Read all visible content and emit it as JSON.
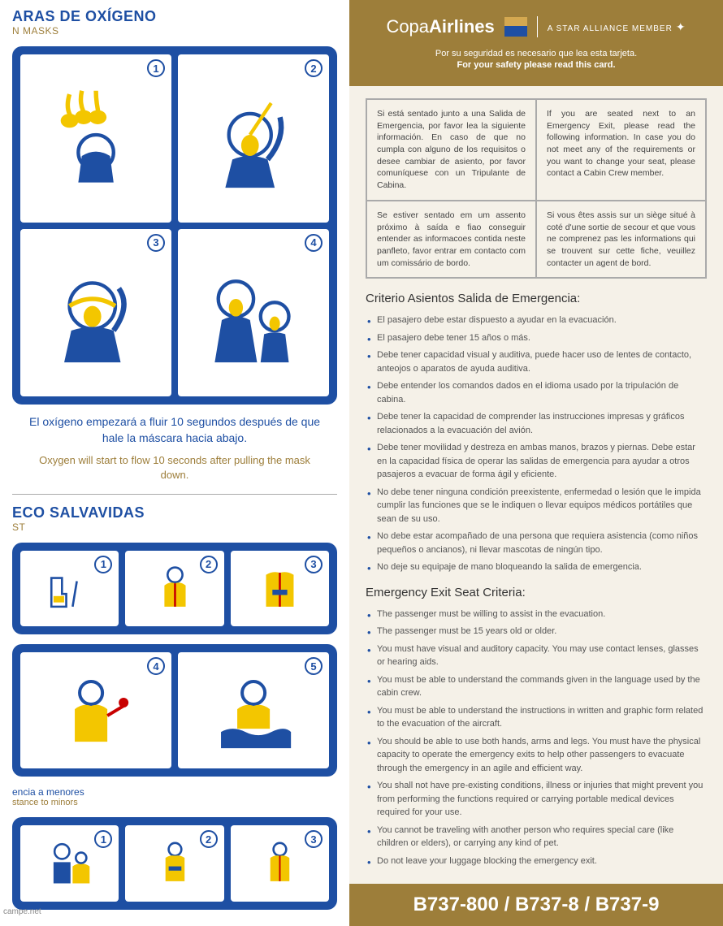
{
  "colors": {
    "blue": "#1e4fa3",
    "gold": "#9d7e3a",
    "yellow": "#f3c600",
    "bg": "#f5f1e8"
  },
  "left": {
    "oxygen": {
      "title_es": "ARAS DE OXÍGENO",
      "title_en": "N MASKS",
      "steps": [
        "1",
        "2",
        "3",
        "4"
      ],
      "caption_es": "El oxígeno empezará a fluir 10 segundos después de que hale la máscara hacia abajo.",
      "caption_en": "Oxygen will start to flow 10 seconds after pulling the mask down."
    },
    "life_vest": {
      "title_es": "ECO SALVAVIDAS",
      "title_en": "ST",
      "steps1": [
        "1",
        "2",
        "3"
      ],
      "steps2": [
        "4",
        "5"
      ],
      "minor_es": "encia a menores",
      "minor_en": "stance to minors",
      "steps3": [
        "1",
        "2",
        "3"
      ]
    }
  },
  "header": {
    "logo_a": "Copa",
    "logo_b": "Airlines",
    "tagline": "A STAR ALLIANCE MEMBER",
    "msg_es": "Por su seguridad es necesario que lea esta tarjeta.",
    "msg_en": "For your safety please read this card."
  },
  "langbox": {
    "es": "Si está sentado junto a una Salida de Emergencia, por favor lea la siguiente información. En caso de que no cumpla con alguno de los requisitos o desee cambiar de asiento, por favor comuníquese con un Tripulante de Cabina.",
    "en": "If you are seated next to an Emergency Exit, please read the following information. In case you do not meet any of the requirements or you want to change your seat, please contact a Cabin Crew member.",
    "pt": "Se estiver sentado em um assento próximo à saída e fiao conseguir entender as informacoes contida neste panfleto, favor entrar em contacto com um comissário de bordo.",
    "fr": "Si vous êtes assis sur un siège situé à coté d'une sortie de secour et que vous ne comprenez pas les informations qui se trouvent sur cette fiche, veuillez contacter un agent de bord."
  },
  "criteria_es": {
    "title": "Criterio Asientos Salida de Emergencia:",
    "items": [
      "El pasajero debe estar dispuesto a ayudar en la evacuación.",
      "El pasajero debe tener 15 años o más.",
      "Debe tener capacidad visual y auditiva, puede hacer uso de lentes de contacto, anteojos o aparatos de ayuda auditiva.",
      "Debe entender los comandos dados en el idioma usado por la tripulación de cabina.",
      "Debe tener la capacidad de comprender las instrucciones impresas y gráficos relacionados a la evacuación del avión.",
      "Debe tener movilidad y destreza en ambas manos, brazos y piernas. Debe estar en la capacidad física de operar las salidas de emergencia para ayudar a otros pasajeros a evacuar de forma ágil y eficiente.",
      "No debe tener ninguna condición preexistente, enfermedad o lesión que le impida cumplir las funciones que se le indiquen o llevar equipos médicos portátiles que sean de su uso.",
      "No debe estar acompañado de una persona que requiera asistencia (como niños pequeños o ancianos), ni llevar mascotas de ningún tipo.",
      "No deje su equipaje de mano bloqueando la salida de emergencia."
    ]
  },
  "criteria_en": {
    "title": "Emergency Exit Seat Criteria:",
    "items": [
      "The passenger must be willing to assist in the evacuation.",
      "The passenger must be 15 years old or older.",
      "You must have visual and auditory capacity. You may use contact lenses, glasses or hearing aids.",
      "You must be able to understand the commands given in the language used by the cabin crew.",
      "You must be able to understand the instructions in written and graphic form related to the evacuation of the aircraft.",
      "You should be able to use both hands, arms and legs. You must have the physical capacity to operate the emergency exits to help other passengers to evacuate through the emergency in an agile and efficient way.",
      "You shall not have pre-existing conditions, illness or injuries that might prevent you from performing the functions required or carrying portable medical devices required for your use.",
      "You cannot be traveling with another person who requires special care (like children or elders), or carrying any kind of pet.",
      "Do not leave your luggage blocking the emergency exit."
    ]
  },
  "footer": "B737-800 / B737-8 / B737-9",
  "watermark": "campe.net"
}
